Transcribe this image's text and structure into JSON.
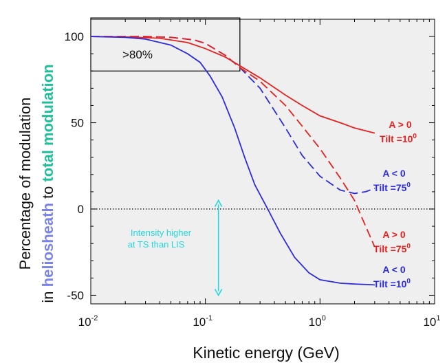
{
  "chart_data": {
    "type": "line",
    "x_scale": "log",
    "xlim": [
      0.01,
      10
    ],
    "ylim": [
      -55,
      110
    ],
    "xlabel": "Kinetic energy (GeV)",
    "ylabel": {
      "line1": "Percentage of modulation",
      "line2_prefix": "in ",
      "line2_term1": "heliosheath",
      "line2_mid": " to ",
      "line2_term2": "total modulation"
    },
    "yticks": [
      -50,
      0,
      50,
      100
    ],
    "ytick_labels": [
      "-50",
      "0",
      "50",
      "100"
    ],
    "xticks": [
      {
        "value": 0.01,
        "base": "10",
        "exp": "-2"
      },
      {
        "value": 0.1,
        "base": "10",
        "exp": "-1"
      },
      {
        "value": 1,
        "base": "10",
        "exp": "0"
      },
      {
        "value": 10,
        "base": "10",
        "exp": "1"
      }
    ],
    "grid": false,
    "background": "#efefef",
    "colors": {
      "red": "#e8201d",
      "blue": "#2b2be0",
      "cyan": "#22d7e0",
      "heliosheath": "#7b84e6",
      "total": "#1fbf9a"
    },
    "zero_line": {
      "style": "dotted",
      "y": 0
    },
    "inset_box": {
      "label": ">80%",
      "x_range": [
        0.01,
        0.2
      ],
      "y_range": [
        80,
        100
      ]
    },
    "annotation": {
      "line1": "Intensity higher",
      "line2": "at TS than LIS",
      "arrow": {
        "x": 0.13,
        "y_from": 5,
        "y_to": -50
      }
    },
    "series": [
      {
        "key": "a_pos_tilt10",
        "color": "#e8201d",
        "dash": "solid",
        "label_line1": "A > 0",
        "label_line2": "Tilt =10",
        "label_sup": "0",
        "points": [
          [
            0.01,
            100
          ],
          [
            0.02,
            99.8
          ],
          [
            0.04,
            99
          ],
          [
            0.07,
            96.5
          ],
          [
            0.1,
            93
          ],
          [
            0.15,
            88
          ],
          [
            0.2,
            83
          ],
          [
            0.3,
            76
          ],
          [
            0.5,
            66
          ],
          [
            0.7,
            60
          ],
          [
            1,
            54
          ],
          [
            1.5,
            50
          ],
          [
            2,
            47
          ],
          [
            3,
            44
          ]
        ]
      },
      {
        "key": "a_neg_tilt75",
        "color": "#2b2be0",
        "dash": "dashed",
        "label_line1": "A < 0",
        "label_line2": "Tilt =75",
        "label_sup": "0",
        "points": [
          [
            0.01,
            100
          ],
          [
            0.03,
            100
          ],
          [
            0.05,
            99.5
          ],
          [
            0.08,
            98
          ],
          [
            0.1,
            96
          ],
          [
            0.15,
            89
          ],
          [
            0.2,
            82
          ],
          [
            0.3,
            70
          ],
          [
            0.5,
            47
          ],
          [
            0.7,
            31
          ],
          [
            1,
            19
          ],
          [
            1.5,
            11
          ],
          [
            2,
            9
          ],
          [
            2.5,
            10
          ],
          [
            3,
            12
          ]
        ]
      },
      {
        "key": "a_pos_tilt75",
        "color": "#e8201d",
        "dash": "dashed",
        "label_line1": "A > 0",
        "label_line2": "Tilt =75",
        "label_sup": "0",
        "points": [
          [
            0.01,
            100
          ],
          [
            0.03,
            100
          ],
          [
            0.05,
            99.5
          ],
          [
            0.08,
            98
          ],
          [
            0.1,
            96
          ],
          [
            0.15,
            89
          ],
          [
            0.2,
            82
          ],
          [
            0.3,
            74
          ],
          [
            0.5,
            60
          ],
          [
            0.7,
            48
          ],
          [
            1,
            35
          ],
          [
            1.5,
            18
          ],
          [
            2,
            5
          ],
          [
            2.5,
            -10
          ],
          [
            3,
            -22
          ]
        ]
      },
      {
        "key": "a_neg_tilt10",
        "color": "#2b2be0",
        "dash": "solid",
        "label_line1": "A < 0",
        "label_line2": "Tilt =10",
        "label_sup": "0",
        "points": [
          [
            0.01,
            100
          ],
          [
            0.02,
            99.5
          ],
          [
            0.03,
            98.5
          ],
          [
            0.05,
            95
          ],
          [
            0.07,
            90
          ],
          [
            0.09,
            85
          ],
          [
            0.11,
            77
          ],
          [
            0.14,
            65
          ],
          [
            0.18,
            47
          ],
          [
            0.22,
            30
          ],
          [
            0.27,
            14
          ],
          [
            0.35,
            0
          ],
          [
            0.45,
            -14
          ],
          [
            0.6,
            -28
          ],
          [
            0.8,
            -37
          ],
          [
            1,
            -41
          ],
          [
            1.5,
            -43
          ],
          [
            2,
            -43.5
          ],
          [
            3,
            -44
          ]
        ]
      }
    ]
  }
}
